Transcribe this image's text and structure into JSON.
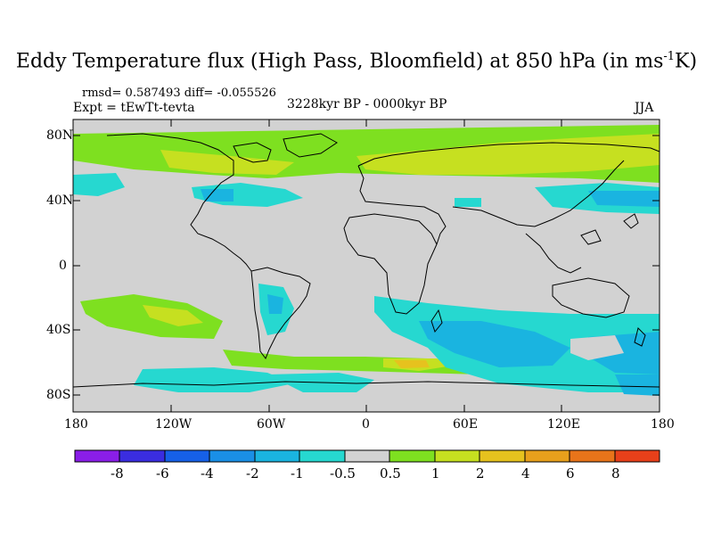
{
  "title": {
    "main": "Eddy Temperature flux (High Pass, Bloomfield) at 850 hPa (in ms",
    "sup": "-1",
    "end": "K)"
  },
  "stats": {
    "rmsd_line": "rmsd= 0.587493 diff= -0.055526",
    "expt_line": "Expt = tEwTt-tevta"
  },
  "period": "3228kyr BP - 0000kyr BP",
  "season": "JJA",
  "lat_ticks": [
    "80N",
    "40N",
    "0",
    "40S",
    "80S"
  ],
  "lon_ticks": [
    "180",
    "120W",
    "60W",
    "0",
    "60E",
    "120E",
    "180"
  ],
  "colorbar": {
    "labels": [
      "-8",
      "-6",
      "-4",
      "-2",
      "-1",
      "-0.5",
      "0.5",
      "1",
      "2",
      "4",
      "6",
      "8"
    ],
    "colors": [
      "#8a1ee8",
      "#3a2de0",
      "#1660e8",
      "#1a8fe6",
      "#1ab4e0",
      "#26d8d0",
      "#d2d2d2",
      "#7ee020",
      "#c6e020",
      "#e6c21e",
      "#e8a01c",
      "#e8741a",
      "#e8401a"
    ]
  },
  "colors": {
    "land_bg": "#d2d2d2"
  }
}
